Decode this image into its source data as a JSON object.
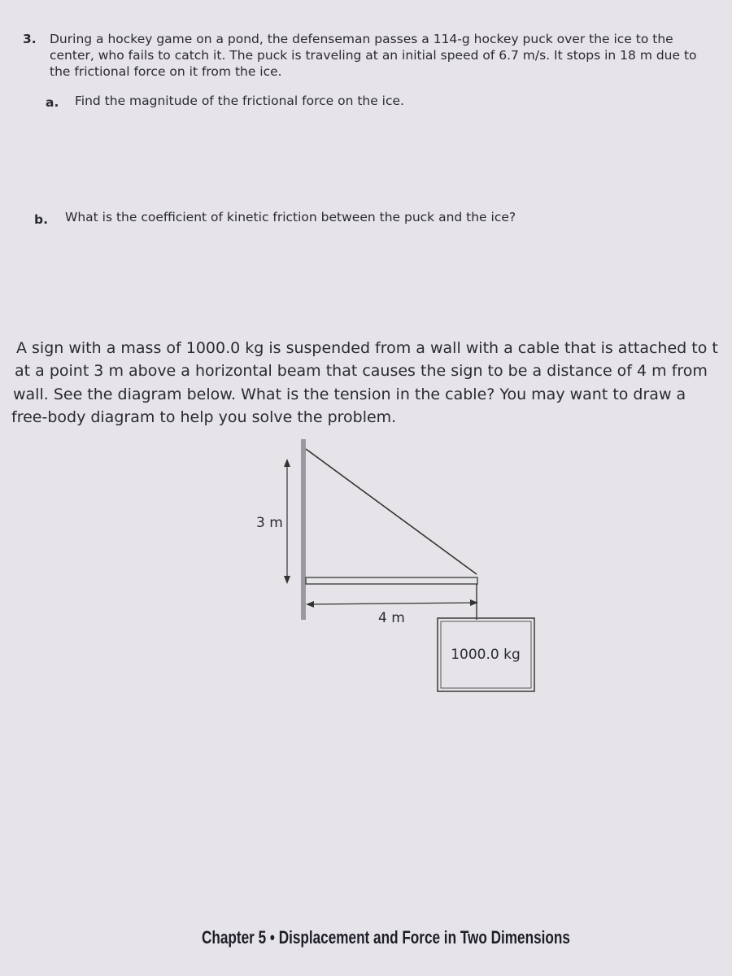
{
  "problem_3": {
    "number": "3.",
    "text": "During a hockey game on a pond, the defenseman passes a 114-g hockey puck over the ice to the center, who fails to catch it. The puck is traveling at an initial speed of 6.7 m/s. It stops in 18 m due to the frictional force on it from the ice.",
    "parts": [
      {
        "label": "a.",
        "text": "Find the magnitude of the frictional force on the ice."
      },
      {
        "label": "b.",
        "text": "What is the coefficient of kinetic friction between the puck and the ice?"
      }
    ]
  },
  "sign_problem": {
    "lines": [
      "A sign with a mass of 1000.0 kg is suspended from a wall with a cable that is attached to t",
      "at a point 3 m above a horizontal beam that causes the sign to be a distance of 4 m from",
      "wall. See the diagram below. What is the tension in the cable? You may want to draw a",
      "free-body diagram to help you solve the problem."
    ],
    "diagram": {
      "height_label": "3 m",
      "length_label": "4 m",
      "sign_label": "1000.0 kg"
    }
  },
  "footer": "Chapter 5 • Displacement and Force in Two Dimensions"
}
